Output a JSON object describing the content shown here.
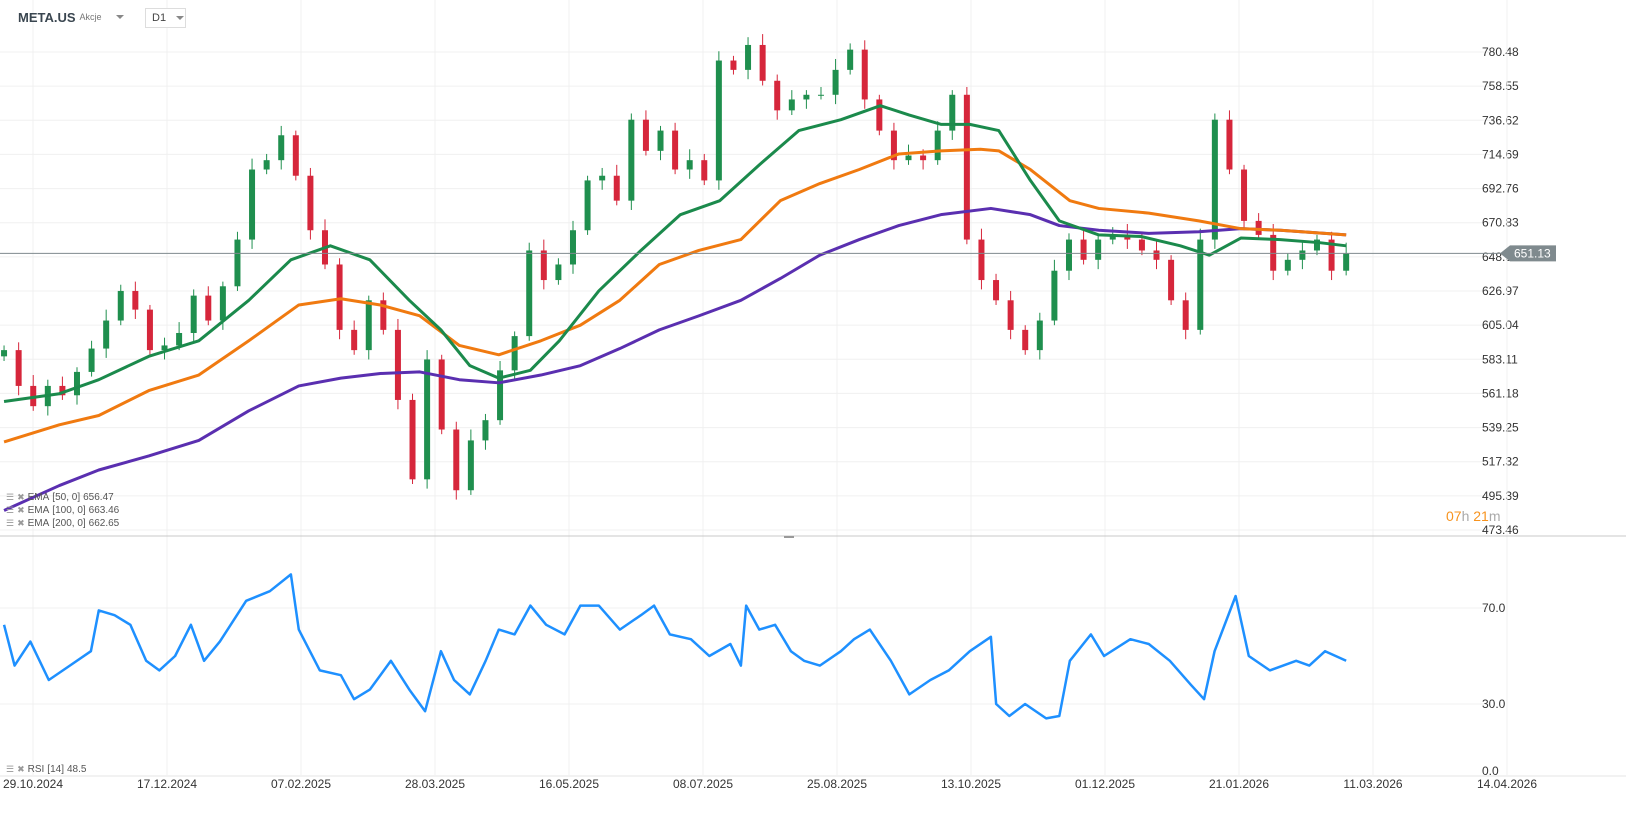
{
  "header": {
    "symbol": "META.US",
    "asset_type": "Akcje",
    "timeframe": "D1"
  },
  "current_price": "651.13",
  "countdown": {
    "hours": "07",
    "h": "h",
    "minutes": "21",
    "m": "m"
  },
  "legend": [
    {
      "name": "EMA",
      "params": "[50, 0]",
      "value": "656.47",
      "color": "#1b8a4c"
    },
    {
      "name": "EMA",
      "params": "[100, 0]",
      "value": "663.46",
      "color": "#f07a10"
    },
    {
      "name": "EMA",
      "params": "[200, 0]",
      "value": "662.65",
      "color": "#5a2fb0"
    }
  ],
  "rsi_legend": {
    "name": "RSI",
    "params": "[14]",
    "value": "48.5"
  },
  "colors": {
    "up": "#1f8f4e",
    "down": "#d6263b",
    "rsi": "#1e90ff",
    "price_tag": "#7f8a8e"
  },
  "chart_data": {
    "type": "candlestick",
    "x_unit": "days since 29.10.2024",
    "price_axis": {
      "labels": [
        "780.48",
        "758.55",
        "736.62",
        "714.69",
        "692.76",
        "670.83",
        "648.90",
        "626.97",
        "605.04",
        "583.11",
        "561.18",
        "539.25",
        "517.32",
        "495.39",
        "473.46"
      ],
      "range": [
        473.46,
        780.48
      ]
    },
    "date_labels": [
      "29.10.2024",
      "17.12.2024",
      "07.02.2025",
      "28.03.2025",
      "16.05.2025",
      "08.07.2025",
      "25.08.2025",
      "13.10.2025",
      "01.12.2025",
      "21.01.2026",
      "11.03.2026",
      "14.04.2026"
    ],
    "candles_day_range": [
      -11,
      499
    ],
    "closes": [
      589,
      566,
      553,
      566,
      560,
      575,
      590,
      608,
      627,
      615,
      589,
      592,
      600,
      624,
      608,
      630,
      660,
      705,
      711,
      727,
      701,
      666,
      644,
      602,
      589,
      621,
      602,
      557,
      506,
      583,
      538,
      499,
      531,
      544,
      576,
      598,
      653,
      634,
      644,
      666,
      698,
      701,
      685,
      737,
      717,
      730,
      705,
      711,
      698,
      775,
      769,
      785,
      762,
      743,
      750,
      753,
      753,
      769,
      782,
      750,
      730,
      711,
      714,
      711,
      730,
      753,
      660,
      634,
      621,
      602,
      589,
      608,
      640,
      660,
      647,
      660,
      663,
      660,
      653,
      647,
      621,
      602,
      660,
      737,
      705,
      672,
      663,
      640,
      647,
      653,
      660,
      640,
      651
    ],
    "ema50": [
      [
        -11,
        556
      ],
      [
        10,
        561
      ],
      [
        25,
        570
      ],
      [
        44,
        585
      ],
      [
        63,
        595
      ],
      [
        82,
        621
      ],
      [
        98,
        647
      ],
      [
        113,
        656
      ],
      [
        128,
        647
      ],
      [
        143,
        621
      ],
      [
        155,
        602
      ],
      [
        166,
        579
      ],
      [
        177,
        571
      ],
      [
        189,
        576
      ],
      [
        200,
        595
      ],
      [
        215,
        627
      ],
      [
        231,
        653
      ],
      [
        246,
        676
      ],
      [
        261,
        685
      ],
      [
        276,
        708
      ],
      [
        291,
        730
      ],
      [
        307,
        737
      ],
      [
        322,
        746
      ],
      [
        333,
        740
      ],
      [
        345,
        734
      ],
      [
        356,
        734
      ],
      [
        367,
        730
      ],
      [
        379,
        698
      ],
      [
        390,
        672
      ],
      [
        405,
        663
      ],
      [
        421,
        662
      ],
      [
        436,
        656
      ],
      [
        447,
        650
      ],
      [
        459,
        661
      ],
      [
        474,
        660
      ],
      [
        489,
        658
      ],
      [
        499,
        656
      ]
    ],
    "ema100": [
      [
        -11,
        530
      ],
      [
        10,
        541
      ],
      [
        25,
        547
      ],
      [
        44,
        563
      ],
      [
        63,
        573
      ],
      [
        82,
        595
      ],
      [
        101,
        618
      ],
      [
        117,
        622
      ],
      [
        132,
        618
      ],
      [
        147,
        611
      ],
      [
        162,
        592
      ],
      [
        177,
        586
      ],
      [
        193,
        595
      ],
      [
        208,
        605
      ],
      [
        223,
        621
      ],
      [
        238,
        644
      ],
      [
        253,
        653
      ],
      [
        269,
        660
      ],
      [
        284,
        685
      ],
      [
        299,
        696
      ],
      [
        314,
        705
      ],
      [
        329,
        715
      ],
      [
        345,
        717
      ],
      [
        360,
        718
      ],
      [
        367,
        717
      ],
      [
        379,
        705
      ],
      [
        394,
        685
      ],
      [
        405,
        680
      ],
      [
        424,
        677
      ],
      [
        443,
        672
      ],
      [
        459,
        667
      ],
      [
        474,
        666
      ],
      [
        499,
        663
      ]
    ],
    "ema200": [
      [
        -11,
        486
      ],
      [
        10,
        502
      ],
      [
        25,
        512
      ],
      [
        44,
        521
      ],
      [
        63,
        531
      ],
      [
        82,
        550
      ],
      [
        101,
        566
      ],
      [
        117,
        571
      ],
      [
        132,
        574
      ],
      [
        147,
        575
      ],
      [
        162,
        570
      ],
      [
        177,
        568
      ],
      [
        193,
        573
      ],
      [
        208,
        579
      ],
      [
        223,
        590
      ],
      [
        238,
        602
      ],
      [
        253,
        611
      ],
      [
        269,
        621
      ],
      [
        284,
        635
      ],
      [
        299,
        650
      ],
      [
        314,
        660
      ],
      [
        329,
        669
      ],
      [
        345,
        676
      ],
      [
        364,
        680
      ],
      [
        379,
        676
      ],
      [
        390,
        669
      ],
      [
        405,
        666
      ],
      [
        424,
        664
      ],
      [
        443,
        665
      ],
      [
        459,
        667
      ],
      [
        474,
        666
      ],
      [
        499,
        663
      ]
    ],
    "rsi": {
      "labels": [
        "70.0",
        "30.0",
        "0.0"
      ],
      "range": [
        0,
        100
      ],
      "values": [
        [
          -11,
          63
        ],
        [
          -7,
          46
        ],
        [
          -1,
          56
        ],
        [
          6,
          40
        ],
        [
          14,
          46
        ],
        [
          22,
          52
        ],
        [
          25,
          69
        ],
        [
          31,
          67
        ],
        [
          37,
          63
        ],
        [
          43,
          48
        ],
        [
          48,
          44
        ],
        [
          54,
          50
        ],
        [
          60,
          63
        ],
        [
          65,
          48
        ],
        [
          71,
          56
        ],
        [
          81,
          73
        ],
        [
          90,
          77
        ],
        [
          98,
          84
        ],
        [
          101,
          61
        ],
        [
          109,
          44
        ],
        [
          117,
          42
        ],
        [
          122,
          32
        ],
        [
          128,
          36
        ],
        [
          136,
          48
        ],
        [
          143,
          36
        ],
        [
          149,
          27
        ],
        [
          155,
          52
        ],
        [
          160,
          40
        ],
        [
          166,
          34
        ],
        [
          172,
          48
        ],
        [
          177,
          61
        ],
        [
          183,
          59
        ],
        [
          189,
          71
        ],
        [
          195,
          63
        ],
        [
          202,
          59
        ],
        [
          208,
          71
        ],
        [
          215,
          71
        ],
        [
          223,
          61
        ],
        [
          231,
          67
        ],
        [
          236,
          71
        ],
        [
          242,
          59
        ],
        [
          250,
          57
        ],
        [
          257,
          50
        ],
        [
          265,
          55
        ],
        [
          269,
          46
        ],
        [
          271,
          71
        ],
        [
          276,
          61
        ],
        [
          282,
          63
        ],
        [
          288,
          52
        ],
        [
          293,
          48
        ],
        [
          299,
          46
        ],
        [
          307,
          52
        ],
        [
          312,
          57
        ],
        [
          318,
          61
        ],
        [
          326,
          48
        ],
        [
          333,
          34
        ],
        [
          341,
          40
        ],
        [
          348,
          44
        ],
        [
          356,
          52
        ],
        [
          364,
          58
        ],
        [
          366,
          30
        ],
        [
          371,
          25
        ],
        [
          377,
          30
        ],
        [
          385,
          24
        ],
        [
          390,
          25
        ],
        [
          394,
          48
        ],
        [
          402,
          59
        ],
        [
          407,
          50
        ],
        [
          417,
          57
        ],
        [
          424,
          55
        ],
        [
          432,
          48
        ],
        [
          440,
          38
        ],
        [
          445,
          32
        ],
        [
          449,
          52
        ],
        [
          457,
          75
        ],
        [
          462,
          50
        ],
        [
          470,
          44
        ],
        [
          480,
          48
        ],
        [
          485,
          46
        ],
        [
          491,
          52
        ],
        [
          499,
          48
        ]
      ]
    }
  }
}
